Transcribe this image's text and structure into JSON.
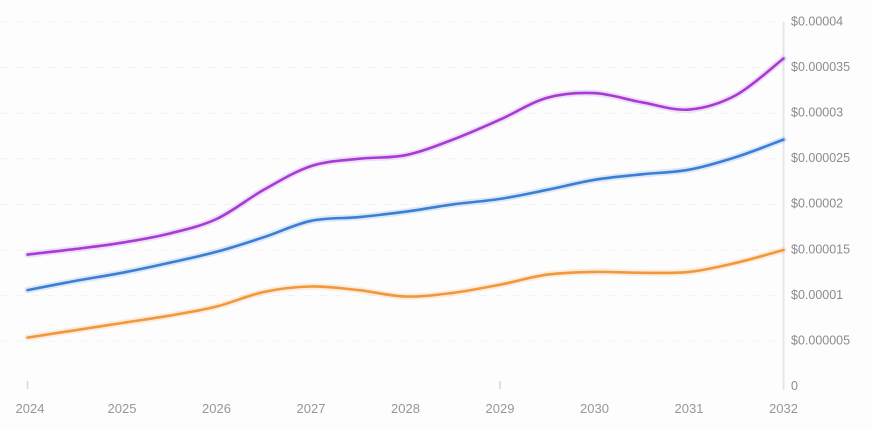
{
  "chart_data": {
    "type": "line",
    "title": "",
    "xlabel": "",
    "ylabel": "",
    "legend": "none",
    "grid": "dashed-horizontal",
    "xlim": [
      2024,
      2032
    ],
    "ylim": [
      0,
      4e-05
    ],
    "x_ticks": [
      2024,
      2025,
      2026,
      2027,
      2028,
      2029,
      2030,
      2031,
      2032
    ],
    "x_tick_labels": [
      "2024",
      "2025",
      "2026",
      "2027",
      "2028",
      "2029",
      "2030",
      "2031",
      "2032"
    ],
    "x_axis_tick_marks": [
      2024,
      2029
    ],
    "y_ticks": [
      0,
      5e-06,
      1e-05,
      1.5e-05,
      2e-05,
      2.5e-05,
      3e-05,
      3.5e-05,
      4e-05
    ],
    "y_tick_labels": [
      "0",
      "$0.000005",
      "$0.00001",
      "$0.000015",
      "$0.00002",
      "$0.000025",
      "$0.00003",
      "$0.000035",
      "$0.00004"
    ],
    "x": [
      2024,
      2024.5,
      2025,
      2025.5,
      2026,
      2026.5,
      2027,
      2027.5,
      2028,
      2028.5,
      2029,
      2029.5,
      2030,
      2030.5,
      2031,
      2031.5,
      2032
    ],
    "series": [
      {
        "name": "purple-line",
        "color": "#a63cd3",
        "values": [
          1.45e-05,
          1.51e-05,
          1.58e-05,
          1.68e-05,
          1.84e-05,
          2.16e-05,
          2.42e-05,
          2.5e-05,
          2.54e-05,
          2.71e-05,
          2.93e-05,
          3.17e-05,
          3.22e-05,
          3.12e-05,
          3.04e-05,
          3.2e-05,
          3.6e-05
        ]
      },
      {
        "name": "blue-line",
        "color": "#3a7fd5",
        "values": [
          1.06e-05,
          1.16e-05,
          1.25e-05,
          1.36e-05,
          1.48e-05,
          1.64e-05,
          1.82e-05,
          1.86e-05,
          1.92e-05,
          2e-05,
          2.06e-05,
          2.16e-05,
          2.27e-05,
          2.33e-05,
          2.38e-05,
          2.52e-05,
          2.71e-05
        ]
      },
      {
        "name": "orange-line",
        "color": "#f0983b",
        "values": [
          5.4e-06,
          6.2e-06,
          7e-06,
          7.8e-06,
          8.8e-06,
          1.04e-05,
          1.1e-05,
          1.06e-05,
          9.9e-06,
          1.03e-05,
          1.12e-05,
          1.23e-05,
          1.26e-05,
          1.25e-05,
          1.26e-05,
          1.36e-05,
          1.5e-05
        ]
      }
    ]
  },
  "style": {
    "background": "#fdfdfe",
    "axis_line_color": "#e6e6e9",
    "grid_color": "#f1f1f4",
    "tick_mark_color": "#d6d6da",
    "y_label_color": "#8b8b90",
    "x_label_color": "#97979b"
  }
}
